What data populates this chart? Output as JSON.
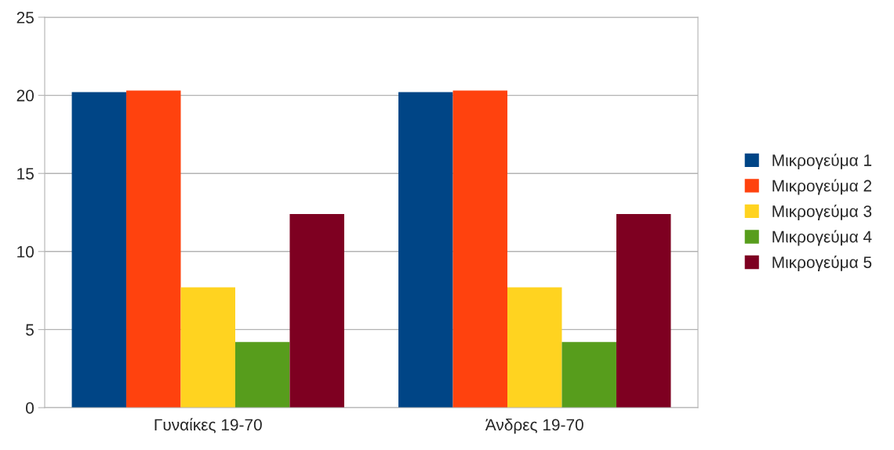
{
  "chart_data": {
    "type": "bar",
    "categories": [
      "Γυναίκες 19-70",
      "Άνδρες 19-70"
    ],
    "series": [
      {
        "name": "Μικρογεύμα 1",
        "color": "#004586",
        "values": [
          20.2,
          20.2
        ]
      },
      {
        "name": "Μικρογεύμα 2",
        "color": "#ff420e",
        "values": [
          20.3,
          20.3
        ]
      },
      {
        "name": "Μικρογεύμα 3",
        "color": "#ffd320",
        "values": [
          7.7,
          7.7
        ]
      },
      {
        "name": "Μικρογεύμα 4",
        "color": "#579d1c",
        "values": [
          4.2,
          4.2
        ]
      },
      {
        "name": "Μικρογεύμα 5",
        "color": "#7e0021",
        "values": [
          12.4,
          12.4
        ]
      }
    ],
    "ylim": [
      0,
      25
    ],
    "yticks": [
      0,
      5,
      10,
      15,
      20,
      25
    ],
    "grid": "y",
    "legend": "right"
  }
}
